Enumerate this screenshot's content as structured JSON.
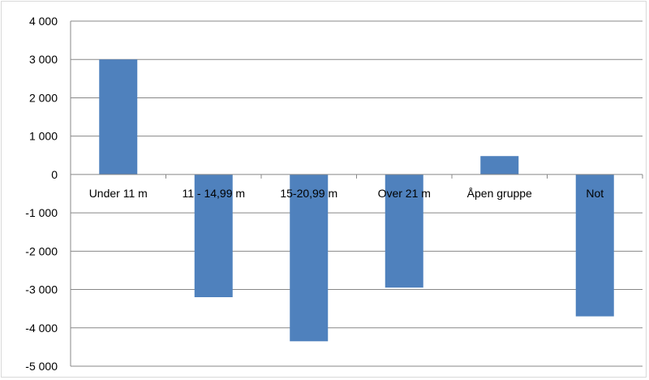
{
  "chart_data": {
    "type": "bar",
    "categories": [
      "Under 11 m",
      "11 - 14,99 m",
      "15-20,99 m",
      "Over 21 m",
      "Åpen gruppe",
      "Not"
    ],
    "values": [
      3000,
      -3200,
      -4350,
      -2950,
      480,
      -3700
    ],
    "ylim": [
      -5000,
      4000
    ],
    "yticks": [
      4000,
      3000,
      2000,
      1000,
      0,
      -1000,
      -2000,
      -3000,
      -4000,
      -5000
    ],
    "ytick_labels": [
      "4 000",
      "3 000",
      "2 000",
      "1 000",
      "0",
      "-1 000",
      "-2 000",
      "-3 000",
      "-4 000",
      "-5 000"
    ],
    "title": "",
    "xlabel": "",
    "ylabel": "",
    "grid": true,
    "legend": "none",
    "bar_color": "#4f81bd",
    "grid_color": "#888888"
  }
}
